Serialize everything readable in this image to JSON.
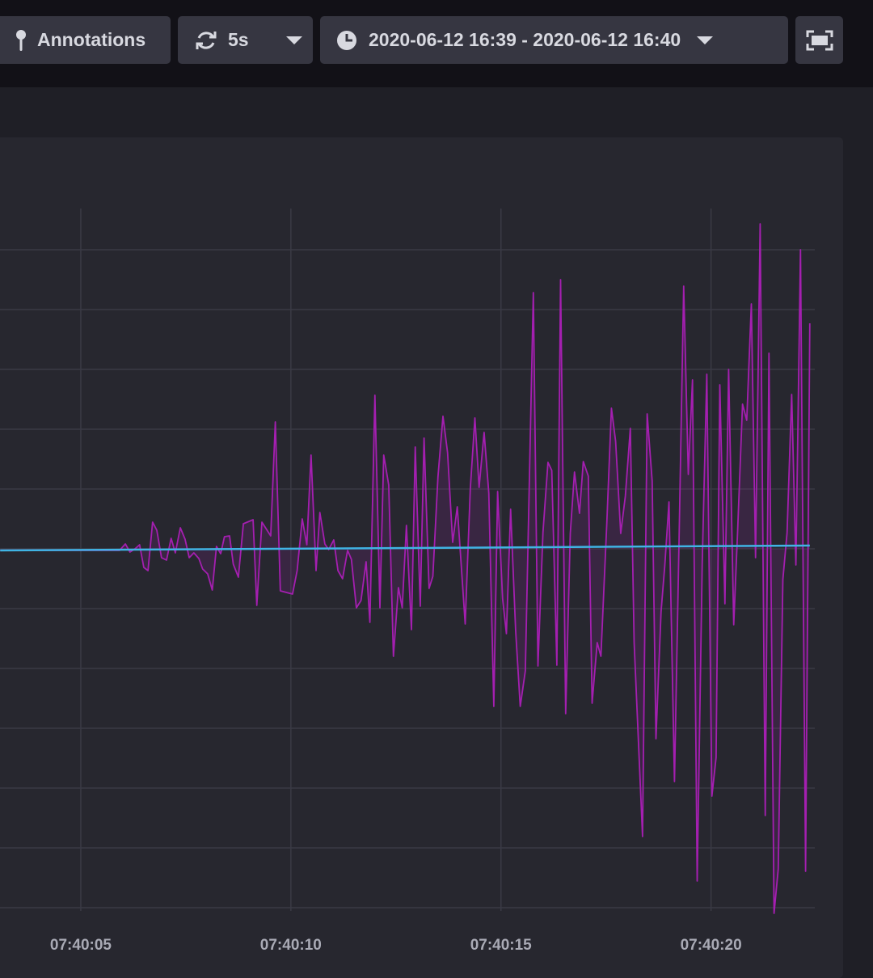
{
  "toolbar": {
    "annotations": "Annotations",
    "refresh": "5s",
    "time_range": "2020-06-12 16:39 - 2020-06-12 16:40"
  },
  "chart_data": {
    "type": "line",
    "xlim": [
      3,
      22.47
    ],
    "ylim": [
      -460,
      421
    ],
    "xticks": [
      {
        "value": 5,
        "label": "07:40:05"
      },
      {
        "value": 10,
        "label": "07:40:10"
      },
      {
        "value": 15,
        "label": "07:40:15"
      },
      {
        "value": 20,
        "label": "07:40:20"
      }
    ],
    "yticks": [
      -444,
      -370,
      -296,
      -222,
      -148,
      -74,
      0,
      74,
      148,
      222,
      296,
      370
    ],
    "grid": true,
    "series": [
      {
        "color": "#a41fb0",
        "fill": true,
        "x": [
          3.08,
          5.92,
          6.06,
          6.17,
          6.29,
          6.4,
          6.5,
          6.6,
          6.71,
          6.81,
          6.92,
          7.04,
          7.15,
          7.25,
          7.37,
          7.48,
          7.58,
          7.69,
          7.81,
          7.9,
          8.02,
          8.13,
          8.23,
          8.33,
          8.42,
          8.54,
          8.63,
          8.75,
          8.87,
          9.1,
          9.19,
          9.31,
          9.52,
          9.63,
          9.75,
          10.04,
          10.15,
          10.27,
          10.38,
          10.48,
          10.6,
          10.69,
          10.81,
          10.9,
          11.02,
          11.12,
          11.23,
          11.35,
          11.44,
          11.56,
          11.67,
          11.79,
          11.88,
          12.0,
          12.12,
          12.21,
          12.33,
          12.44,
          12.56,
          12.65,
          12.75,
          12.87,
          12.96,
          13.08,
          13.17,
          13.29,
          13.38,
          13.5,
          13.62,
          13.73,
          13.85,
          13.96,
          14.15,
          14.27,
          14.38,
          14.48,
          14.6,
          14.71,
          14.83,
          14.92,
          15.04,
          15.13,
          15.23,
          15.35,
          15.46,
          15.58,
          15.77,
          15.88,
          16.0,
          16.12,
          16.21,
          16.33,
          16.42,
          16.54,
          16.65,
          16.75,
          16.87,
          16.96,
          17.08,
          17.17,
          17.29,
          17.38,
          17.52,
          17.63,
          17.73,
          17.85,
          17.96,
          18.08,
          18.17,
          18.37,
          18.48,
          18.6,
          18.69,
          18.81,
          18.9,
          19.0,
          19.13,
          19.25,
          19.35,
          19.46,
          19.56,
          19.67,
          19.79,
          19.9,
          20.02,
          20.12,
          20.21,
          20.33,
          20.42,
          20.54,
          20.63,
          20.75,
          20.85,
          20.96,
          21.06,
          21.17,
          21.29,
          21.38,
          21.5,
          21.6,
          21.71,
          21.81,
          21.92,
          22.02,
          22.13,
          22.25,
          22.35
        ],
        "values": [
          -2,
          -2,
          6,
          -4,
          0,
          5,
          -23,
          -27,
          33,
          23,
          -11,
          -14,
          13,
          -5,
          26,
          12,
          -11,
          -5,
          -12,
          -25,
          -31,
          -51,
          3,
          -6,
          15,
          16,
          -19,
          -35,
          31,
          36,
          -70,
          33,
          16,
          157,
          -52,
          -56,
          -27,
          37,
          5,
          116,
          -27,
          45,
          6,
          -1,
          11,
          -27,
          -37,
          -2,
          -13,
          -73,
          -64,
          -16,
          -91,
          190,
          -73,
          116,
          79,
          -133,
          -48,
          -73,
          29,
          -100,
          126,
          -71,
          137,
          -49,
          -34,
          89,
          164,
          119,
          8,
          52,
          -93,
          74,
          162,
          76,
          144,
          69,
          -195,
          71,
          -62,
          -105,
          49,
          -101,
          -195,
          -151,
          317,
          -145,
          20,
          107,
          97,
          -144,
          333,
          -204,
          19,
          95,
          44,
          108,
          90,
          -191,
          -116,
          -133,
          32,
          174,
          133,
          19,
          65,
          149,
          -116,
          -356,
          167,
          84,
          -235,
          -78,
          -21,
          58,
          -288,
          39,
          325,
          92,
          209,
          -411,
          -19,
          216,
          -306,
          -258,
          203,
          -68,
          222,
          -94,
          19,
          179,
          159,
          303,
          -11,
          402,
          -330,
          242,
          -451,
          -396,
          -38,
          20,
          191,
          -20,
          370,
          -399,
          279
        ]
      },
      {
        "color": "#3fb4e4",
        "fill": false,
        "x": [
          3.08,
          22.35
        ],
        "values": [
          -2,
          4
        ]
      }
    ]
  }
}
